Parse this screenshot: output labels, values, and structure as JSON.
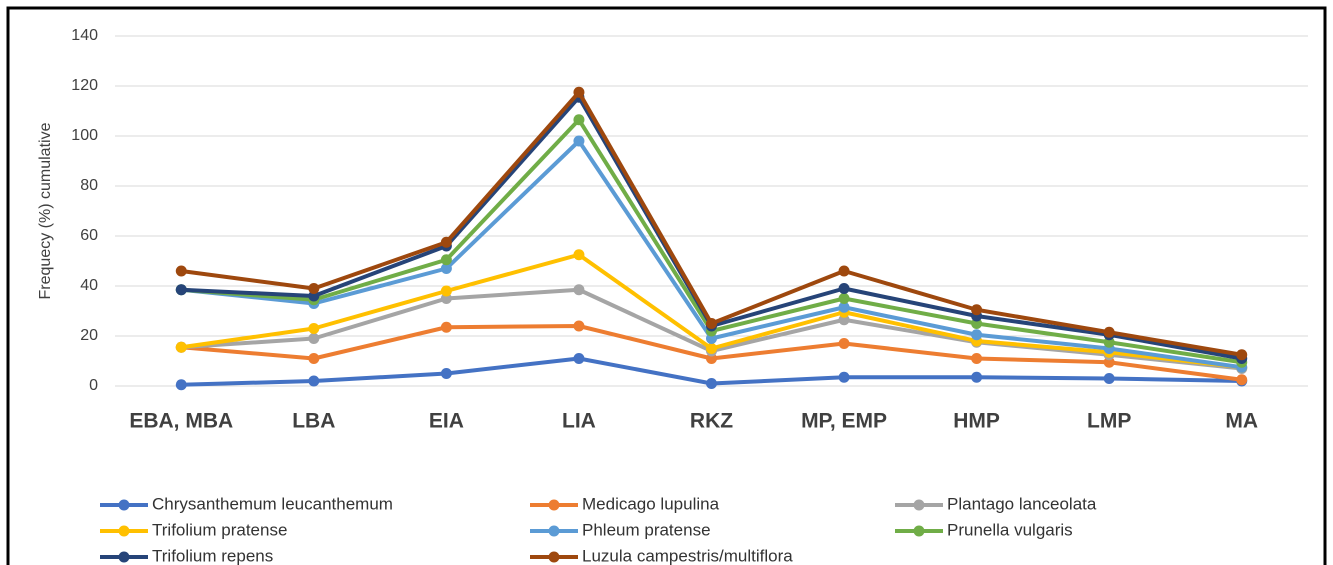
{
  "chart_data": {
    "type": "line",
    "y_label": "Frequecy (%) cumulative",
    "categories": [
      "EBA, MBA",
      "LBA",
      "EIA",
      "LIA",
      "RKZ",
      "MP, EMP",
      "HMP",
      "LMP",
      "MA"
    ],
    "ylim": [
      0,
      140
    ],
    "yticks": [
      0,
      20,
      40,
      60,
      80,
      100,
      120,
      140
    ],
    "grid": true,
    "legend": "bottom",
    "series": [
      {
        "name": "Chrysanthemum leucanthemum",
        "color": "#4472c4",
        "values": [
          0.5,
          2,
          5,
          11,
          1,
          3.5,
          3.5,
          3,
          2
        ]
      },
      {
        "name": "Medicago lupulina",
        "color": "#ed7d31",
        "values": [
          15.5,
          11,
          23.5,
          24,
          11,
          17,
          11,
          9.5,
          2.5
        ]
      },
      {
        "name": "Plantago lanceolata",
        "color": "#a5a5a5",
        "values": [
          15.5,
          19,
          35,
          38.5,
          14,
          26.5,
          17.5,
          12.5,
          7
        ]
      },
      {
        "name": "Trifolium pratense",
        "color": "#ffc000",
        "values": [
          15.5,
          23,
          38,
          52.5,
          15,
          29.5,
          18,
          13.5,
          7.5
        ]
      },
      {
        "name": "Phleum pratense",
        "color": "#5b9bd5",
        "values": [
          38.5,
          33,
          47,
          98,
          19,
          31.5,
          20.5,
          15,
          7.5
        ]
      },
      {
        "name": "Prunella vulgaris",
        "color": "#70ad47",
        "values": [
          38.5,
          34.5,
          50.5,
          106.5,
          22,
          35,
          25,
          17.5,
          9.5
        ]
      },
      {
        "name": "Trifolium repens",
        "color": "#264478",
        "values": [
          38.5,
          36,
          56,
          115.5,
          24,
          39,
          28,
          20.5,
          11
        ]
      },
      {
        "name": "Luzula campestris/multiflora",
        "color": "#9e480e",
        "values": [
          46,
          39,
          57.5,
          117.5,
          25,
          46,
          30.5,
          21.5,
          12.5
        ]
      }
    ]
  }
}
